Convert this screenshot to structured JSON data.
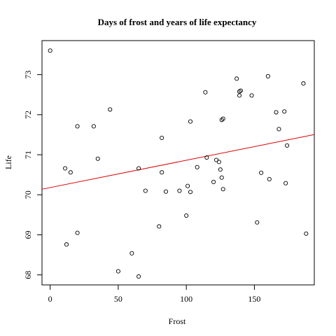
{
  "chart_data": {
    "type": "scatter",
    "title": "Days of frost and years of life expectancy",
    "xlabel": "Frost",
    "ylabel": "Life",
    "xlim": [
      -6,
      194
    ],
    "ylim": [
      67.75,
      73.85
    ],
    "x_ticks": [
      0,
      50,
      100,
      150
    ],
    "y_ticks": [
      68,
      69,
      70,
      71,
      72,
      73
    ],
    "colors": {
      "points": "#000000",
      "fit_line": "#dd0000"
    },
    "fit_line": {
      "intercept": 70.18,
      "slope": 0.00682
    },
    "points": [
      [
        0,
        73.6
      ],
      [
        11,
        70.66
      ],
      [
        12,
        68.76
      ],
      [
        15,
        70.56
      ],
      [
        20,
        71.71
      ],
      [
        20,
        69.05
      ],
      [
        32,
        71.71
      ],
      [
        35,
        70.9
      ],
      [
        44,
        72.13
      ],
      [
        50,
        68.09
      ],
      [
        60,
        68.54
      ],
      [
        65,
        70.66
      ],
      [
        65,
        67.96
      ],
      [
        70,
        70.1
      ],
      [
        80,
        69.21
      ],
      [
        82,
        71.42
      ],
      [
        82,
        70.56
      ],
      [
        85,
        70.08
      ],
      [
        95,
        70.1
      ],
      [
        100,
        69.48
      ],
      [
        101,
        70.22
      ],
      [
        103,
        70.07
      ],
      [
        103,
        71.83
      ],
      [
        108,
        70.69
      ],
      [
        114,
        72.56
      ],
      [
        115,
        70.93
      ],
      [
        120,
        70.32
      ],
      [
        122,
        70.87
      ],
      [
        124,
        70.82
      ],
      [
        125,
        70.63
      ],
      [
        126,
        70.43
      ],
      [
        126,
        71.87
      ],
      [
        127,
        71.9
      ],
      [
        127,
        70.14
      ],
      [
        137,
        72.9
      ],
      [
        139,
        72.48
      ],
      [
        139,
        72.58
      ],
      [
        140,
        72.6
      ],
      [
        148,
        72.48
      ],
      [
        152,
        69.31
      ],
      [
        155,
        70.55
      ],
      [
        160,
        72.96
      ],
      [
        161,
        70.39
      ],
      [
        166,
        72.06
      ],
      [
        168,
        71.64
      ],
      [
        172,
        72.08
      ],
      [
        173,
        70.29
      ],
      [
        174,
        71.23
      ],
      [
        186,
        72.78
      ],
      [
        188,
        69.03
      ]
    ]
  }
}
